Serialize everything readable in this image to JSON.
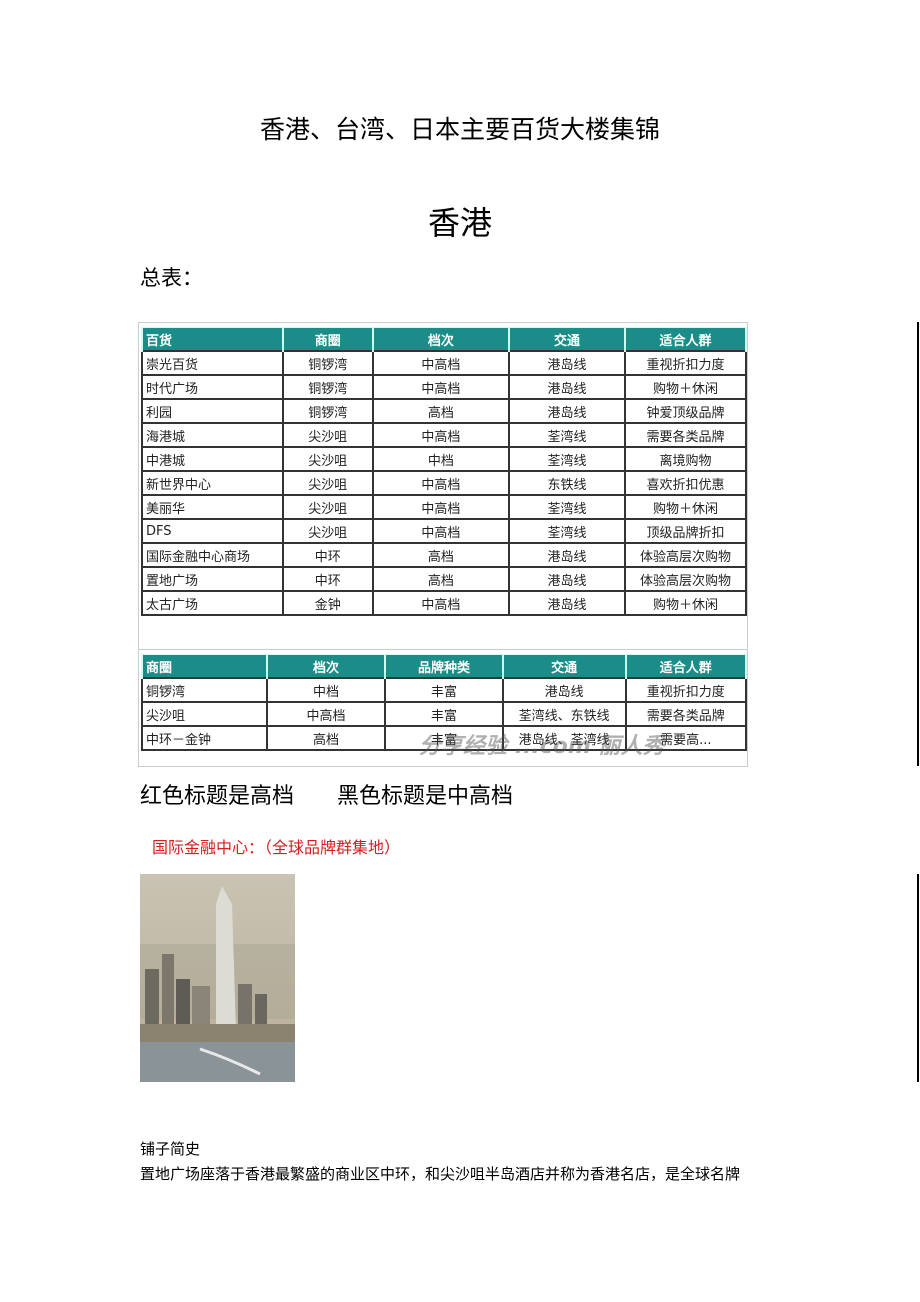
{
  "title": "香港、台湾、日本主要百货大楼集锦",
  "section": "香港",
  "summary_label": "总表：",
  "table1": {
    "headers": [
      "百货",
      "商圈",
      "档次",
      "交通",
      "适合人群"
    ],
    "rows": [
      [
        "崇光百货",
        "铜锣湾",
        "中高档",
        "港岛线",
        "重视折扣力度"
      ],
      [
        "时代广场",
        "铜锣湾",
        "中高档",
        "港岛线",
        "购物＋休闲"
      ],
      [
        "利园",
        "铜锣湾",
        "高档",
        "港岛线",
        "钟爱顶级品牌"
      ],
      [
        "海港城",
        "尖沙咀",
        "中高档",
        "荃湾线",
        "需要各类品牌"
      ],
      [
        "中港城",
        "尖沙咀",
        "中档",
        "荃湾线",
        "离境购物"
      ],
      [
        "新世界中心",
        "尖沙咀",
        "中高档",
        "东铁线",
        "喜欢折扣优惠"
      ],
      [
        "美丽华",
        "尖沙咀",
        "中高档",
        "荃湾线",
        "购物＋休闲"
      ],
      [
        "DFS",
        "尖沙咀",
        "中高档",
        "荃湾线",
        "顶级品牌折扣"
      ],
      [
        "国际金融中心商场",
        "中环",
        "高档",
        "港岛线",
        "体验高层次购物"
      ],
      [
        "置地广场",
        "中环",
        "高档",
        "港岛线",
        "体验高层次购物"
      ],
      [
        "太古广场",
        "金钟",
        "中高档",
        "港岛线",
        "购物＋休闲"
      ]
    ]
  },
  "table2": {
    "headers": [
      "商圈",
      "档次",
      "品牌种类",
      "交通",
      "适合人群"
    ],
    "rows": [
      [
        "铜锣湾",
        "中档",
        "丰富",
        "港岛线",
        "重视折扣力度"
      ],
      [
        "尖沙咀",
        "中高档",
        "丰富",
        "荃湾线、东铁线",
        "需要各类品牌"
      ],
      [
        "中环－金钟",
        "高档",
        "丰富",
        "港岛线、荃湾线",
        "需要高..."
      ]
    ]
  },
  "watermark": "分享经验 ...com 丽人秀",
  "legend": [
    "红色标题是高档",
    "黑色标题是中高档"
  ],
  "ifc_heading": "国际金融中心：（全球品牌群集地）",
  "history_heading": "铺子简史",
  "history_text": "置地广场座落于香港最繁盛的商业区中环，和尖沙咀半岛酒店并称为香港名店，是全球名牌",
  "colors": {
    "header": "#1b8c88",
    "red_heading": "#d42020"
  }
}
